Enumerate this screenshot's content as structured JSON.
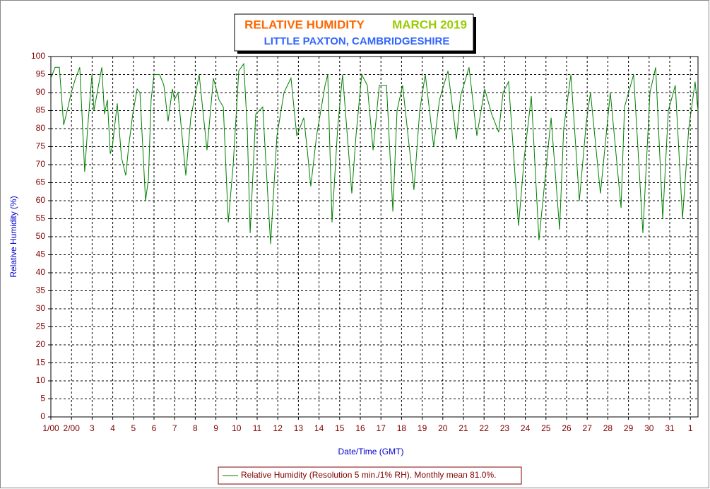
{
  "chart_data": {
    "type": "line",
    "title": "RELATIVE HUMIDITY",
    "title_month": "MARCH 2019",
    "subtitle": "LITTLE PAXTON, CAMBRIDGESHIRE",
    "x_label": "Date/Time (GMT)",
    "y_label": "Relative Humidity (%)",
    "xlim": [
      1,
      32.37
    ],
    "ylim": [
      0,
      100
    ],
    "xticks": [
      {
        "value": 1,
        "label": "1/00"
      },
      {
        "value": 2,
        "label": "2/00"
      },
      3,
      4,
      5,
      6,
      7,
      8,
      9,
      10,
      11,
      12,
      13,
      14,
      15,
      16,
      17,
      18,
      19,
      20,
      21,
      22,
      23,
      24,
      25,
      26,
      27,
      28,
      29,
      30,
      31,
      {
        "value": 32,
        "label": "1"
      }
    ],
    "yticks": [
      0,
      5,
      10,
      15,
      20,
      25,
      30,
      35,
      40,
      45,
      50,
      55,
      60,
      65,
      70,
      75,
      80,
      85,
      90,
      95,
      100
    ],
    "grid": true,
    "series": [
      {
        "name": "Relative Humidity (Resolution 5 min./1% RH). Monthly mean 81.0%.",
        "color": "#008000",
        "x": [
          1.0,
          1.21,
          1.41,
          1.62,
          1.79,
          1.99,
          2.2,
          2.4,
          2.64,
          2.78,
          2.99,
          3.09,
          3.47,
          3.6,
          3.74,
          3.88,
          3.98,
          4.22,
          4.42,
          4.63,
          4.77,
          4.97,
          5.18,
          5.32,
          5.59,
          5.73,
          5.86,
          6.0,
          6.27,
          6.48,
          6.68,
          6.89,
          6.99,
          7.16,
          7.54,
          7.78,
          8.19,
          8.57,
          8.88,
          9.15,
          9.36,
          9.6,
          9.84,
          10.11,
          10.35,
          10.52,
          10.66,
          10.93,
          11.27,
          11.65,
          11.96,
          12.3,
          12.64,
          12.92,
          13.26,
          13.43,
          13.6,
          13.88,
          14.29,
          14.42,
          14.63,
          14.9,
          15.14,
          15.59,
          15.79,
          16.07,
          16.34,
          16.62,
          16.92,
          17.27,
          17.58,
          17.78,
          18.05,
          18.6,
          18.88,
          19.15,
          19.56,
          19.84,
          20.25,
          20.66,
          20.86,
          21.27,
          21.65,
          22.03,
          22.37,
          22.71,
          22.92,
          23.19,
          23.67,
          23.95,
          24.29,
          24.66,
          25.25,
          25.66,
          25.86,
          26.21,
          26.62,
          26.96,
          27.16,
          27.64,
          28.12,
          28.64,
          28.81,
          29.25,
          29.7,
          30.04,
          30.32,
          30.66,
          30.93,
          31.27,
          31.62,
          31.92,
          32.23,
          32.37
        ],
        "values": [
          94,
          97,
          97,
          81,
          85,
          90,
          94,
          97,
          68,
          80,
          95,
          85,
          97,
          84,
          88,
          73,
          75,
          87,
          72,
          67,
          75,
          84,
          91,
          90,
          60,
          66,
          88,
          95,
          95,
          92,
          82,
          91,
          88,
          90,
          67,
          83,
          95,
          74,
          94,
          88,
          86,
          54,
          70,
          96,
          98,
          80,
          51,
          84,
          86,
          48,
          78,
          90,
          94,
          78,
          83,
          74,
          64,
          78,
          92,
          95,
          54,
          80,
          95,
          62,
          78,
          95,
          92,
          74,
          92,
          92,
          57,
          85,
          92,
          63,
          85,
          95,
          75,
          88,
          96,
          77,
          89,
          97,
          78,
          91,
          84,
          79,
          90,
          93,
          53,
          72,
          89,
          49,
          83,
          52,
          80,
          95,
          60,
          82,
          90,
          62,
          90,
          58,
          86,
          95,
          51,
          90,
          97,
          55,
          85,
          92,
          55,
          80,
          93,
          85
        ]
      }
    ]
  }
}
